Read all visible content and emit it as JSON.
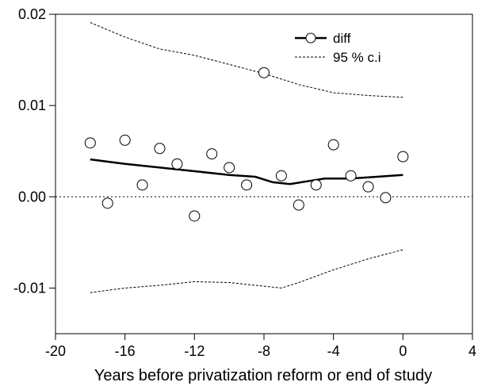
{
  "chart_data": {
    "type": "scatter",
    "xlabel": "Years before privatization reform or end of study",
    "ylabel": "",
    "xlim": [
      -20,
      4
    ],
    "ylim": [
      -0.015,
      0.02
    ],
    "xticks": [
      -20,
      -16,
      -12,
      -8,
      -4,
      0,
      4
    ],
    "xtick_labels": [
      "-20",
      "-16",
      "-12",
      "-8",
      "-4",
      "0",
      "4"
    ],
    "yticks": [
      -0.01,
      0.0,
      0.01,
      0.02
    ],
    "ytick_labels": [
      "-0.01",
      "0.00",
      "0.01",
      "0.02"
    ],
    "reference_line_y": 0.0,
    "grid": false,
    "legend_position": "top-right",
    "series": [
      {
        "name": "diff",
        "kind": "scatter-with-smoothed-line",
        "points": [
          {
            "x": -18,
            "y": 0.0059
          },
          {
            "x": -17,
            "y": -0.0007
          },
          {
            "x": -16,
            "y": 0.0062
          },
          {
            "x": -15,
            "y": 0.0013
          },
          {
            "x": -14,
            "y": 0.0053
          },
          {
            "x": -13,
            "y": 0.0036
          },
          {
            "x": -12,
            "y": -0.0021
          },
          {
            "x": -11,
            "y": 0.0047
          },
          {
            "x": -10,
            "y": 0.0032
          },
          {
            "x": -9,
            "y": 0.0013
          },
          {
            "x": -8,
            "y": 0.0136
          },
          {
            "x": -7,
            "y": 0.0023
          },
          {
            "x": -6,
            "y": -0.0009
          },
          {
            "x": -5,
            "y": 0.0013
          },
          {
            "x": -4,
            "y": 0.0057
          },
          {
            "x": -3,
            "y": 0.0023
          },
          {
            "x": -2,
            "y": 0.0011
          },
          {
            "x": -1,
            "y": -0.0001
          },
          {
            "x": 0,
            "y": 0.0044
          }
        ],
        "smooth": [
          {
            "x": -18,
            "y": 0.0041
          },
          {
            "x": -16,
            "y": 0.0036
          },
          {
            "x": -14,
            "y": 0.0032
          },
          {
            "x": -12,
            "y": 0.0028
          },
          {
            "x": -10,
            "y": 0.0024
          },
          {
            "x": -8.5,
            "y": 0.0022
          },
          {
            "x": -7.5,
            "y": 0.0016
          },
          {
            "x": -6.5,
            "y": 0.0014
          },
          {
            "x": -5.5,
            "y": 0.0017
          },
          {
            "x": -4.5,
            "y": 0.002
          },
          {
            "x": -3,
            "y": 0.002
          },
          {
            "x": -1.5,
            "y": 0.0022
          },
          {
            "x": 0,
            "y": 0.0024
          }
        ]
      },
      {
        "name": "95 % c.i",
        "kind": "dashed-band",
        "upper": [
          {
            "x": -18,
            "y": 0.0191
          },
          {
            "x": -16,
            "y": 0.0175
          },
          {
            "x": -14,
            "y": 0.0162
          },
          {
            "x": -12,
            "y": 0.0155
          },
          {
            "x": -10,
            "y": 0.0145
          },
          {
            "x": -8,
            "y": 0.0135
          },
          {
            "x": -6,
            "y": 0.0123
          },
          {
            "x": -4,
            "y": 0.0114
          },
          {
            "x": -2,
            "y": 0.0111
          },
          {
            "x": 0,
            "y": 0.0109
          }
        ],
        "lower": [
          {
            "x": -18,
            "y": -0.0105
          },
          {
            "x": -16,
            "y": -0.01
          },
          {
            "x": -14,
            "y": -0.0097
          },
          {
            "x": -12,
            "y": -0.0093
          },
          {
            "x": -10,
            "y": -0.0094
          },
          {
            "x": -8,
            "y": -0.0098
          },
          {
            "x": -7,
            "y": -0.01
          },
          {
            "x": -6,
            "y": -0.0094
          },
          {
            "x": -4,
            "y": -0.008
          },
          {
            "x": -2,
            "y": -0.0068
          },
          {
            "x": 0,
            "y": -0.0058
          }
        ]
      }
    ]
  }
}
